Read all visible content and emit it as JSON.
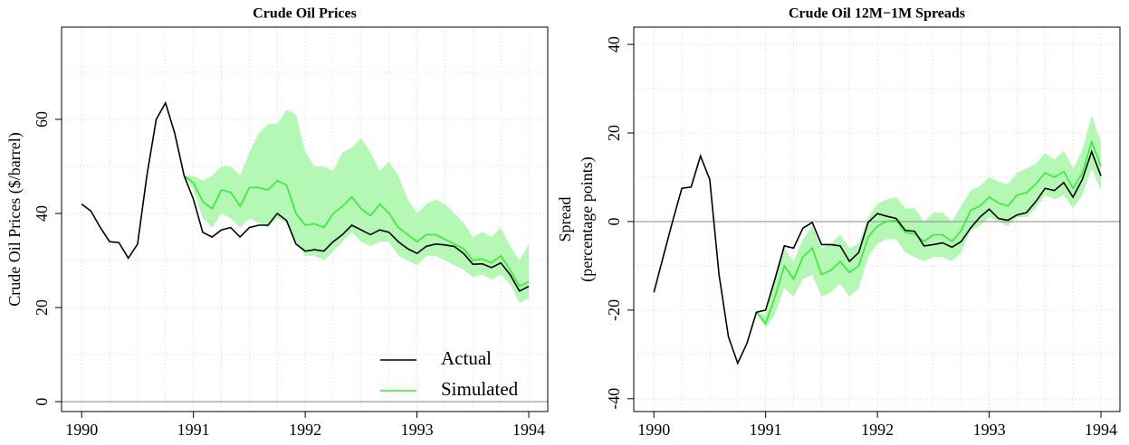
{
  "chart_data": [
    {
      "type": "line",
      "title": "Crude Oil Prices",
      "ylabel": [
        "Crude Oil Prices ($/barrel)"
      ],
      "x": [
        1990,
        1990.083,
        1990.167,
        1990.25,
        1990.333,
        1990.417,
        1990.5,
        1990.583,
        1990.667,
        1990.75,
        1990.833,
        1990.917,
        1991,
        1991.083,
        1991.167,
        1991.25,
        1991.333,
        1991.417,
        1991.5,
        1991.583,
        1991.667,
        1991.75,
        1991.833,
        1991.917,
        1992,
        1992.083,
        1992.167,
        1992.25,
        1992.333,
        1992.417,
        1992.5,
        1992.583,
        1992.667,
        1992.75,
        1992.833,
        1992.917,
        1993,
        1993.083,
        1993.167,
        1993.25,
        1993.333,
        1993.417,
        1993.5,
        1993.583,
        1993.667,
        1993.75,
        1993.833,
        1993.917,
        1994
      ],
      "series": [
        {
          "name": "Actual",
          "color": "#000000",
          "values": [
            42,
            40.5,
            37,
            34,
            33.8,
            30.5,
            33.5,
            48,
            60,
            63.5,
            57,
            48,
            43,
            36,
            35,
            36.5,
            37,
            35,
            37,
            37.5,
            37.5,
            40,
            38.5,
            33.5,
            32,
            32.3,
            32,
            34,
            35.5,
            37.5,
            36.5,
            35.5,
            36.5,
            36,
            34,
            32.5,
            31.5,
            33,
            33.5,
            33.3,
            33,
            31.5,
            29.2,
            29.3,
            28.5,
            29.5,
            27,
            23.5,
            24.5
          ]
        },
        {
          "name": "Simulated",
          "color": "#33ee33",
          "values": [
            null,
            null,
            null,
            null,
            null,
            null,
            null,
            null,
            null,
            null,
            null,
            48,
            46.5,
            42.5,
            41,
            45,
            44.5,
            41.5,
            45.5,
            45.5,
            45,
            47,
            46,
            40,
            37.5,
            37.8,
            37,
            40,
            41.5,
            43.5,
            41,
            39.5,
            42,
            40,
            37,
            35.5,
            34,
            35.5,
            35.5,
            34.5,
            33.5,
            32.5,
            30,
            30.3,
            29.5,
            31,
            28,
            24.5,
            25.5
          ]
        }
      ],
      "band": {
        "color": "#b5f7b5",
        "upper": [
          null,
          null,
          null,
          null,
          null,
          null,
          null,
          null,
          null,
          null,
          null,
          48,
          48,
          47,
          48,
          50,
          50,
          48,
          53,
          57,
          59,
          59,
          62,
          61,
          53,
          50,
          50,
          49,
          53,
          54,
          56,
          53,
          49,
          51,
          48,
          43,
          40,
          42,
          43,
          42,
          40,
          38,
          35,
          36,
          35,
          37,
          33,
          30,
          33.5
        ],
        "lower": [
          null,
          null,
          null,
          null,
          null,
          null,
          null,
          null,
          null,
          null,
          null,
          48,
          45,
          39,
          37,
          40,
          39,
          37,
          39,
          38,
          37,
          39,
          38,
          34,
          31,
          31,
          30,
          32,
          34,
          36,
          34,
          33,
          34,
          34,
          31,
          30,
          29,
          31,
          31,
          30,
          29,
          28,
          26.5,
          27,
          26,
          27,
          25,
          21,
          22
        ]
      },
      "xlim": [
        1989.82,
        1994.17
      ],
      "xticks": [
        1990,
        1991,
        1992,
        1993,
        1994
      ],
      "xgrid": [
        1990,
        1990.25,
        1990.5,
        1990.75,
        1991,
        1991.25,
        1991.5,
        1991.75,
        1992,
        1992.25,
        1992.5,
        1992.75,
        1993,
        1993.25,
        1993.5,
        1993.75,
        1994
      ],
      "ylim": [
        -2.1,
        79.6
      ],
      "yticks": [
        0,
        20,
        40,
        60
      ],
      "ygrid": [
        0,
        10,
        20,
        30,
        40,
        50,
        60,
        70
      ],
      "hline": 0,
      "grid": true,
      "legend": "bottom-right"
    },
    {
      "type": "line",
      "title": "Crude Oil 12M−1M Spreads",
      "ylabel": [
        "Spread",
        "(percentage points)"
      ],
      "x": [
        1990,
        1990.083,
        1990.167,
        1990.25,
        1990.333,
        1990.417,
        1990.5,
        1990.583,
        1990.667,
        1990.75,
        1990.833,
        1990.917,
        1991,
        1991.083,
        1991.167,
        1991.25,
        1991.333,
        1991.417,
        1991.5,
        1991.583,
        1991.667,
        1991.75,
        1991.833,
        1991.917,
        1992,
        1992.083,
        1992.167,
        1992.25,
        1992.333,
        1992.417,
        1992.5,
        1992.583,
        1992.667,
        1992.75,
        1992.833,
        1992.917,
        1993,
        1993.083,
        1993.167,
        1993.25,
        1993.333,
        1993.417,
        1993.5,
        1993.583,
        1993.667,
        1993.75,
        1993.833,
        1993.917,
        1994
      ],
      "series": [
        {
          "name": "Actual",
          "color": "#000000",
          "values": [
            -16,
            -8,
            0,
            7.5,
            7.8,
            14.8,
            9.5,
            -12,
            -26,
            -32,
            -27.5,
            -20.5,
            -20,
            -13,
            -5.5,
            -6,
            -1.5,
            -0.2,
            -5.2,
            -5.2,
            -5.5,
            -9,
            -7,
            -0.2,
            1.8,
            1.2,
            0.7,
            -2,
            -2.2,
            -5.5,
            -5.2,
            -4.8,
            -5.8,
            -4.5,
            -1.5,
            1,
            2.8,
            0.7,
            0.3,
            1.5,
            2,
            4.5,
            7.5,
            7,
            8.8,
            5.5,
            9.5,
            15.8,
            10.3
          ]
        },
        {
          "name": "Simulated",
          "color": "#33ee33",
          "values": [
            null,
            null,
            null,
            null,
            null,
            null,
            null,
            null,
            null,
            null,
            null,
            -20.5,
            -23,
            -17,
            -10,
            -13,
            -8,
            -6,
            -12,
            -11,
            -9,
            -11.5,
            -10,
            -3.5,
            -1,
            0,
            0.3,
            -2.5,
            -2.8,
            -4.5,
            -3,
            -3,
            -4.5,
            -2,
            2.5,
            3.5,
            5.5,
            4.2,
            3.5,
            6,
            6.5,
            8.5,
            11,
            10,
            11.3,
            7.5,
            11,
            18,
            12.5
          ]
        }
      ],
      "band": {
        "color": "#b5f7b5",
        "upper": [
          null,
          null,
          null,
          null,
          null,
          null,
          null,
          null,
          null,
          null,
          null,
          -20.5,
          -21,
          -13,
          -6,
          -9,
          -4,
          -1,
          -6,
          -5,
          -3,
          -6,
          -5,
          1,
          4,
          5,
          5.5,
          3,
          3,
          0,
          2,
          2,
          0,
          3.5,
          7,
          8,
          10,
          9,
          8.5,
          11,
          12,
          13,
          15.5,
          14,
          16,
          12,
          16,
          24,
          18
        ],
        "lower": [
          null,
          null,
          null,
          null,
          null,
          null,
          null,
          null,
          null,
          null,
          null,
          -20.5,
          -24,
          -21,
          -15,
          -17,
          -13,
          -12,
          -17,
          -16,
          -14,
          -17,
          -15,
          -8,
          -5,
          -4,
          -4,
          -7,
          -8,
          -9,
          -8,
          -8,
          -9,
          -7,
          -2,
          -1,
          1,
          0,
          -1,
          1,
          1,
          3,
          6,
          5,
          6,
          3,
          6,
          12,
          7
        ]
      },
      "xlim": [
        1989.82,
        1994.17
      ],
      "xticks": [
        1990,
        1991,
        1992,
        1993,
        1994
      ],
      "xgrid": [
        1990,
        1990.25,
        1990.5,
        1990.75,
        1991,
        1991.25,
        1991.5,
        1991.75,
        1992,
        1992.25,
        1992.5,
        1992.75,
        1993,
        1993.25,
        1993.5,
        1993.75,
        1994
      ],
      "ylim": [
        -42.9,
        43.9
      ],
      "yticks": [
        -40,
        -20,
        0,
        20,
        40
      ],
      "ygrid": [
        -40,
        -30,
        -20,
        -10,
        0,
        10,
        20,
        30,
        40
      ],
      "hline": 0,
      "grid": true
    }
  ]
}
